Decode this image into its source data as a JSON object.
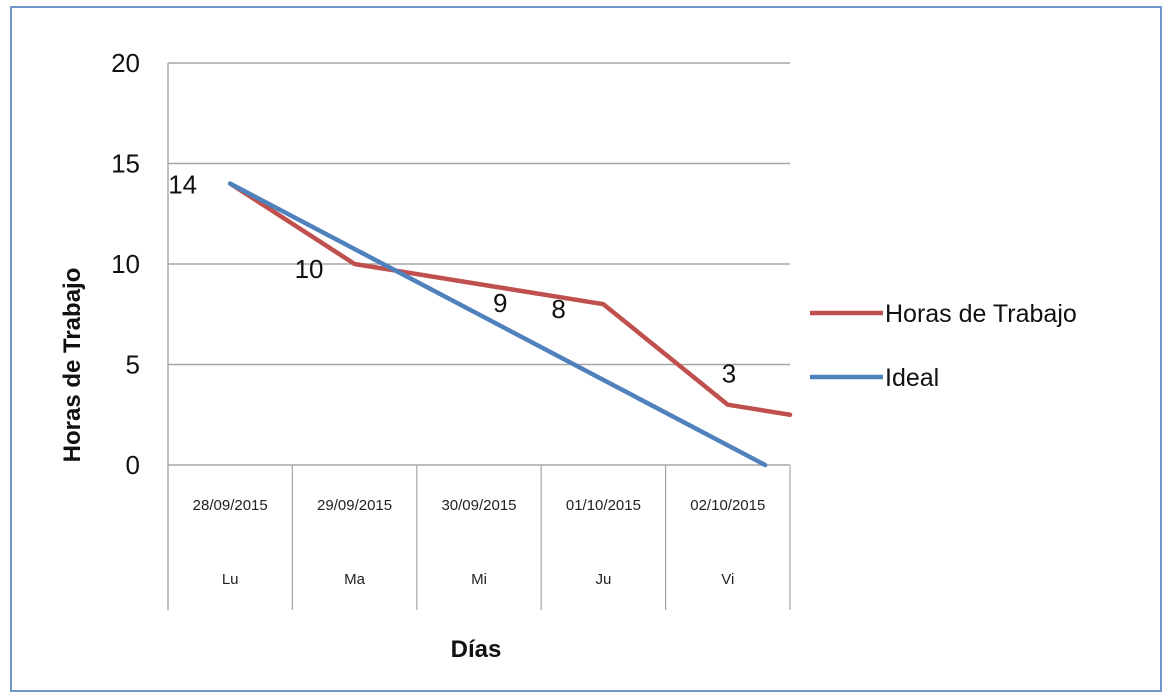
{
  "chart_data": {
    "type": "line",
    "xlabel": "Días",
    "ylabel": "Horas de Trabajo",
    "ylim": [
      0,
      20
    ],
    "yticks": [
      "0",
      "5",
      "10",
      "15",
      "20"
    ],
    "categories": [
      {
        "date": "28/09/2015",
        "day": "Lu"
      },
      {
        "date": "29/09/2015",
        "day": "Ma"
      },
      {
        "date": "30/09/2015",
        "day": "Mi"
      },
      {
        "date": "01/10/2015",
        "day": "Ju"
      },
      {
        "date": "02/10/2015",
        "day": "Vi"
      }
    ],
    "grid": true,
    "legend_position": "right",
    "series": [
      {
        "name": "Horas de Trabajo",
        "color": "#c0504d",
        "x": [
          0,
          1,
          2,
          3,
          4,
          4.5
        ],
        "y": [
          14,
          10,
          9,
          8,
          3,
          2.5
        ]
      },
      {
        "name": "Ideal",
        "color": "#4f81bd",
        "x": [
          0,
          4.3
        ],
        "y": [
          14,
          0
        ]
      }
    ],
    "data_labels": [
      {
        "text": "14",
        "x": 0,
        "y": 14
      },
      {
        "text": "10",
        "x": 1,
        "y": 10
      },
      {
        "text": "9",
        "x": 2,
        "y": 9
      },
      {
        "text": "8",
        "x": 3,
        "y": 8
      },
      {
        "text": "3",
        "x": 4,
        "y": 3
      }
    ]
  }
}
